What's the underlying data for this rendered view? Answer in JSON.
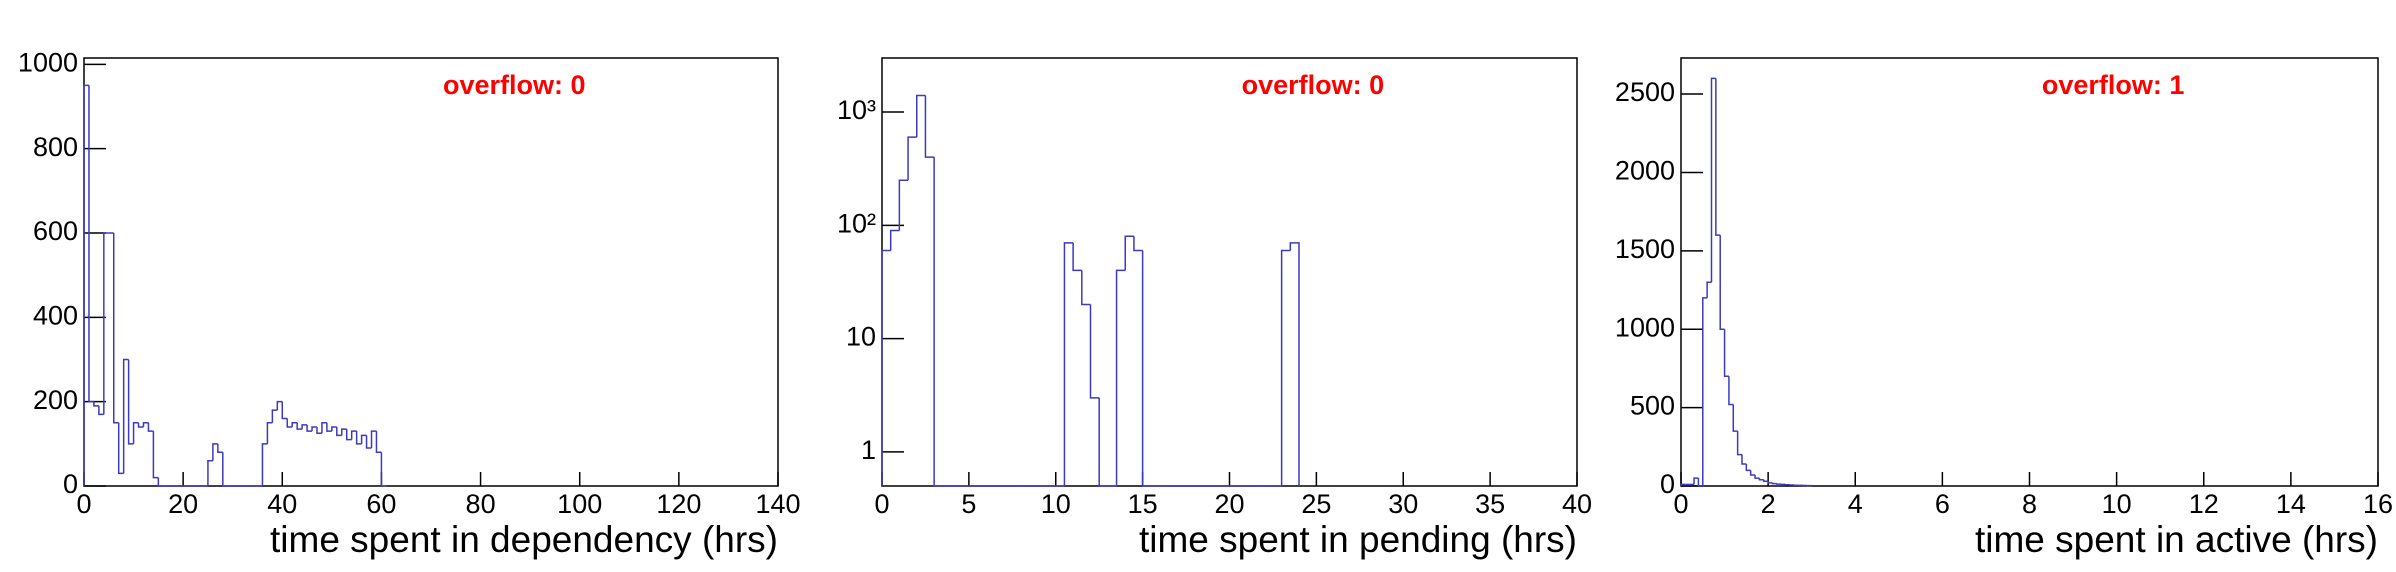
{
  "chart_data": [
    {
      "type": "histogram",
      "x_label": "time spent in dependency (hrs)",
      "annotation": "overflow: 0",
      "color": "#3b3bbf",
      "log_y": false,
      "bins": [
        0,
        1,
        2,
        3,
        4,
        5,
        6,
        7,
        8,
        9,
        10,
        11,
        12,
        13,
        14,
        15,
        16,
        17,
        18,
        19,
        20,
        21,
        22,
        23,
        24,
        25,
        26,
        27,
        28,
        29,
        30,
        31,
        32,
        33,
        34,
        35,
        36,
        37,
        38,
        39,
        40,
        41,
        42,
        43,
        44,
        45,
        46,
        47,
        48,
        49,
        50,
        51,
        52,
        53,
        54,
        55,
        56,
        57,
        58,
        59,
        60,
        61
      ],
      "values": [
        950,
        200,
        190,
        170,
        600,
        600,
        150,
        30,
        300,
        100,
        150,
        140,
        150,
        130,
        20,
        0,
        0,
        0,
        0,
        0,
        0,
        0,
        0,
        0,
        0,
        60,
        100,
        80,
        0,
        0,
        0,
        0,
        0,
        0,
        0,
        0,
        100,
        150,
        180,
        200,
        160,
        140,
        150,
        135,
        145,
        130,
        140,
        125,
        150,
        130,
        140,
        120,
        135,
        110,
        130,
        100,
        120,
        90,
        130,
        80,
        0
      ],
      "xlim": [
        0,
        140
      ],
      "xticks": [
        0,
        20,
        40,
        60,
        80,
        100,
        120,
        140
      ],
      "ylim": [
        0,
        1015
      ],
      "yticks": [
        0,
        200,
        400,
        600,
        800,
        1000
      ]
    },
    {
      "type": "histogram",
      "x_label": "time spent in pending (hrs)",
      "annotation": "overflow: 0",
      "color": "#3b3bbf",
      "log_y": true,
      "bins": [
        0,
        0.5,
        1,
        1.5,
        2,
        2.5,
        3,
        3.5,
        4,
        4.5,
        5,
        5.5,
        6,
        6.5,
        7,
        7.5,
        8,
        8.5,
        9,
        9.5,
        10,
        10.5,
        11,
        11.5,
        12,
        12.5,
        13,
        13.5,
        14,
        14.5,
        15,
        15.5,
        16,
        16.5,
        17,
        17.5,
        18,
        18.5,
        19,
        19.5,
        20,
        20.5,
        21,
        21.5,
        22,
        22.5,
        23,
        23.5,
        24
      ],
      "values": [
        60,
        90,
        250,
        600,
        1400,
        400,
        0,
        0,
        0,
        0,
        0,
        0,
        0,
        0,
        0,
        0,
        0,
        0,
        0,
        0,
        0,
        70,
        40,
        20,
        3,
        0,
        0,
        40,
        80,
        60,
        0,
        0,
        0,
        0,
        0,
        0,
        0,
        0,
        0,
        0,
        0,
        0,
        0,
        0,
        0,
        0,
        60,
        70
      ],
      "xlim": [
        0,
        40
      ],
      "xticks": [
        0,
        5,
        10,
        15,
        20,
        25,
        30,
        35,
        40
      ],
      "ylim": [
        0.5,
        3000
      ],
      "yticks": [
        1,
        10,
        {
          "value": 100,
          "label": "10²"
        },
        {
          "value": 1000,
          "label": "10³"
        }
      ]
    },
    {
      "type": "histogram",
      "x_label": "time spent in active (hrs)",
      "annotation": "overflow: 1",
      "color": "#3b3bbf",
      "log_y": false,
      "bins": [
        0,
        0.1,
        0.2,
        0.3,
        0.4,
        0.5,
        0.6,
        0.7,
        0.8,
        0.9,
        1,
        1.1,
        1.2,
        1.3,
        1.4,
        1.5,
        1.6,
        1.7,
        1.8,
        1.9,
        2,
        2.1,
        2.2,
        2.3,
        2.4,
        2.5,
        2.6,
        2.7,
        2.8,
        2.9,
        3
      ],
      "values": [
        10,
        10,
        10,
        50,
        0,
        1200,
        1300,
        2600,
        1600,
        1000,
        700,
        520,
        350,
        200,
        140,
        100,
        70,
        50,
        40,
        30,
        20,
        15,
        12,
        10,
        8,
        6,
        5,
        4,
        3,
        2
      ],
      "xlim": [
        0,
        16
      ],
      "xticks": [
        0,
        2,
        4,
        6,
        8,
        10,
        12,
        14,
        16
      ],
      "ylim": [
        0,
        2730
      ],
      "yticks": [
        0,
        500,
        1000,
        1500,
        2000,
        2500
      ]
    }
  ]
}
